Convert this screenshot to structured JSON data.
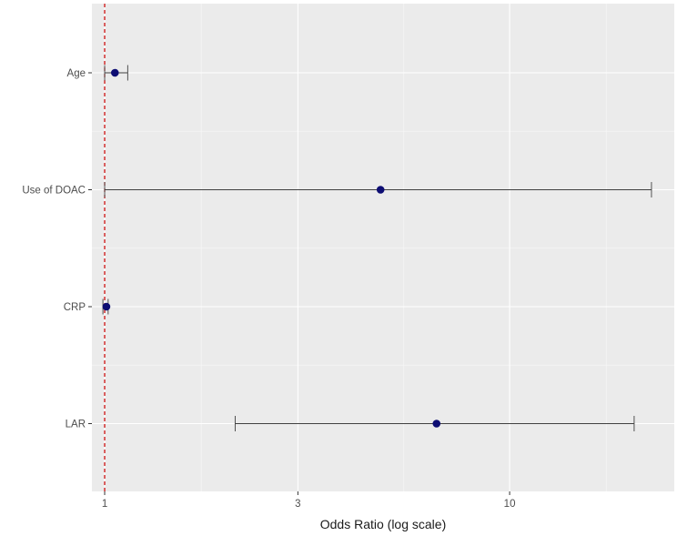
{
  "chart_data": {
    "type": "forest",
    "title": "",
    "xlabel": "Odds Ratio (log scale)",
    "ylabel": "",
    "x_scale": "log",
    "xlim": [
      0.93,
      25.5
    ],
    "x_ticks": [
      1,
      3,
      10
    ],
    "x_tick_labels": [
      "1",
      "3",
      "10"
    ],
    "reference_line": {
      "value": 1,
      "style": "dashed",
      "color": "#cc0000"
    },
    "grid": true,
    "colors": {
      "panel_background": "#ebebeb",
      "grid": "#ffffff",
      "point": "#0d0d73",
      "error_bar": "#404040"
    },
    "rows": [
      {
        "label": "Age",
        "or": 1.06,
        "lower": 1.0,
        "upper": 1.14
      },
      {
        "label": "Use of DOAC",
        "or": 4.8,
        "lower": 1.0,
        "upper": 22.4
      },
      {
        "label": "CRP",
        "or": 1.01,
        "lower": 0.99,
        "upper": 1.02
      },
      {
        "label": "LAR",
        "or": 6.6,
        "lower": 2.1,
        "upper": 20.3
      }
    ]
  }
}
